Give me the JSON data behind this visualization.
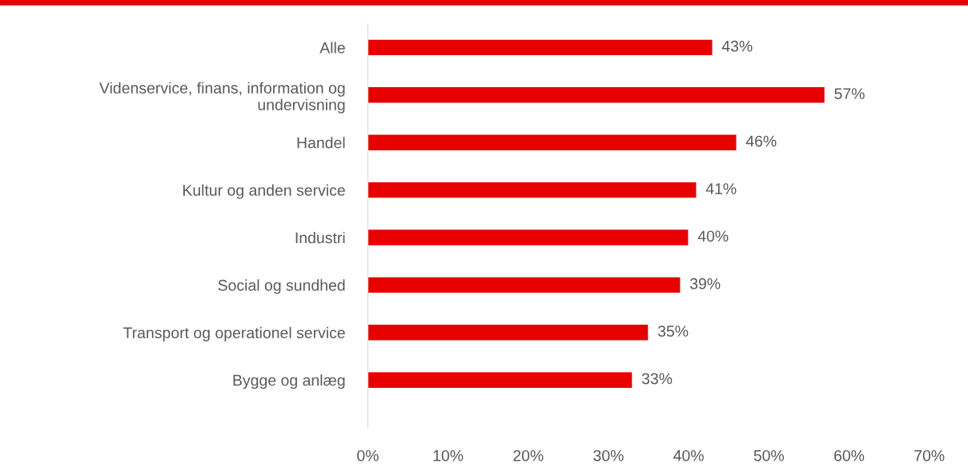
{
  "chart_data": {
    "type": "bar",
    "orientation": "horizontal",
    "categories": [
      "Alle",
      "Videnservice, finans, information og\nundervisning",
      "Handel",
      "Kultur og anden service",
      "Industri",
      "Social og sundhed",
      "Transport og operationel service",
      "Bygge og anlæg"
    ],
    "series": [
      {
        "color": "#e60000",
        "values": [
          43,
          57,
          46,
          41,
          40,
          39,
          35,
          33
        ],
        "value_labels": [
          "43%",
          "57%",
          "46%",
          "41%",
          "40%",
          "39%",
          "35%",
          "33%"
        ]
      }
    ],
    "xlim": [
      0,
      70
    ],
    "xticks": [
      {
        "value": 0,
        "label": "0%"
      },
      {
        "value": 10,
        "label": "10%"
      },
      {
        "value": 20,
        "label": "20%"
      },
      {
        "value": 30,
        "label": "30%"
      },
      {
        "value": 40,
        "label": "40%"
      },
      {
        "value": 50,
        "label": "50%"
      },
      {
        "value": 60,
        "label": "60%"
      },
      {
        "value": 70,
        "label": "70%"
      }
    ],
    "grid": false,
    "legend": false
  }
}
